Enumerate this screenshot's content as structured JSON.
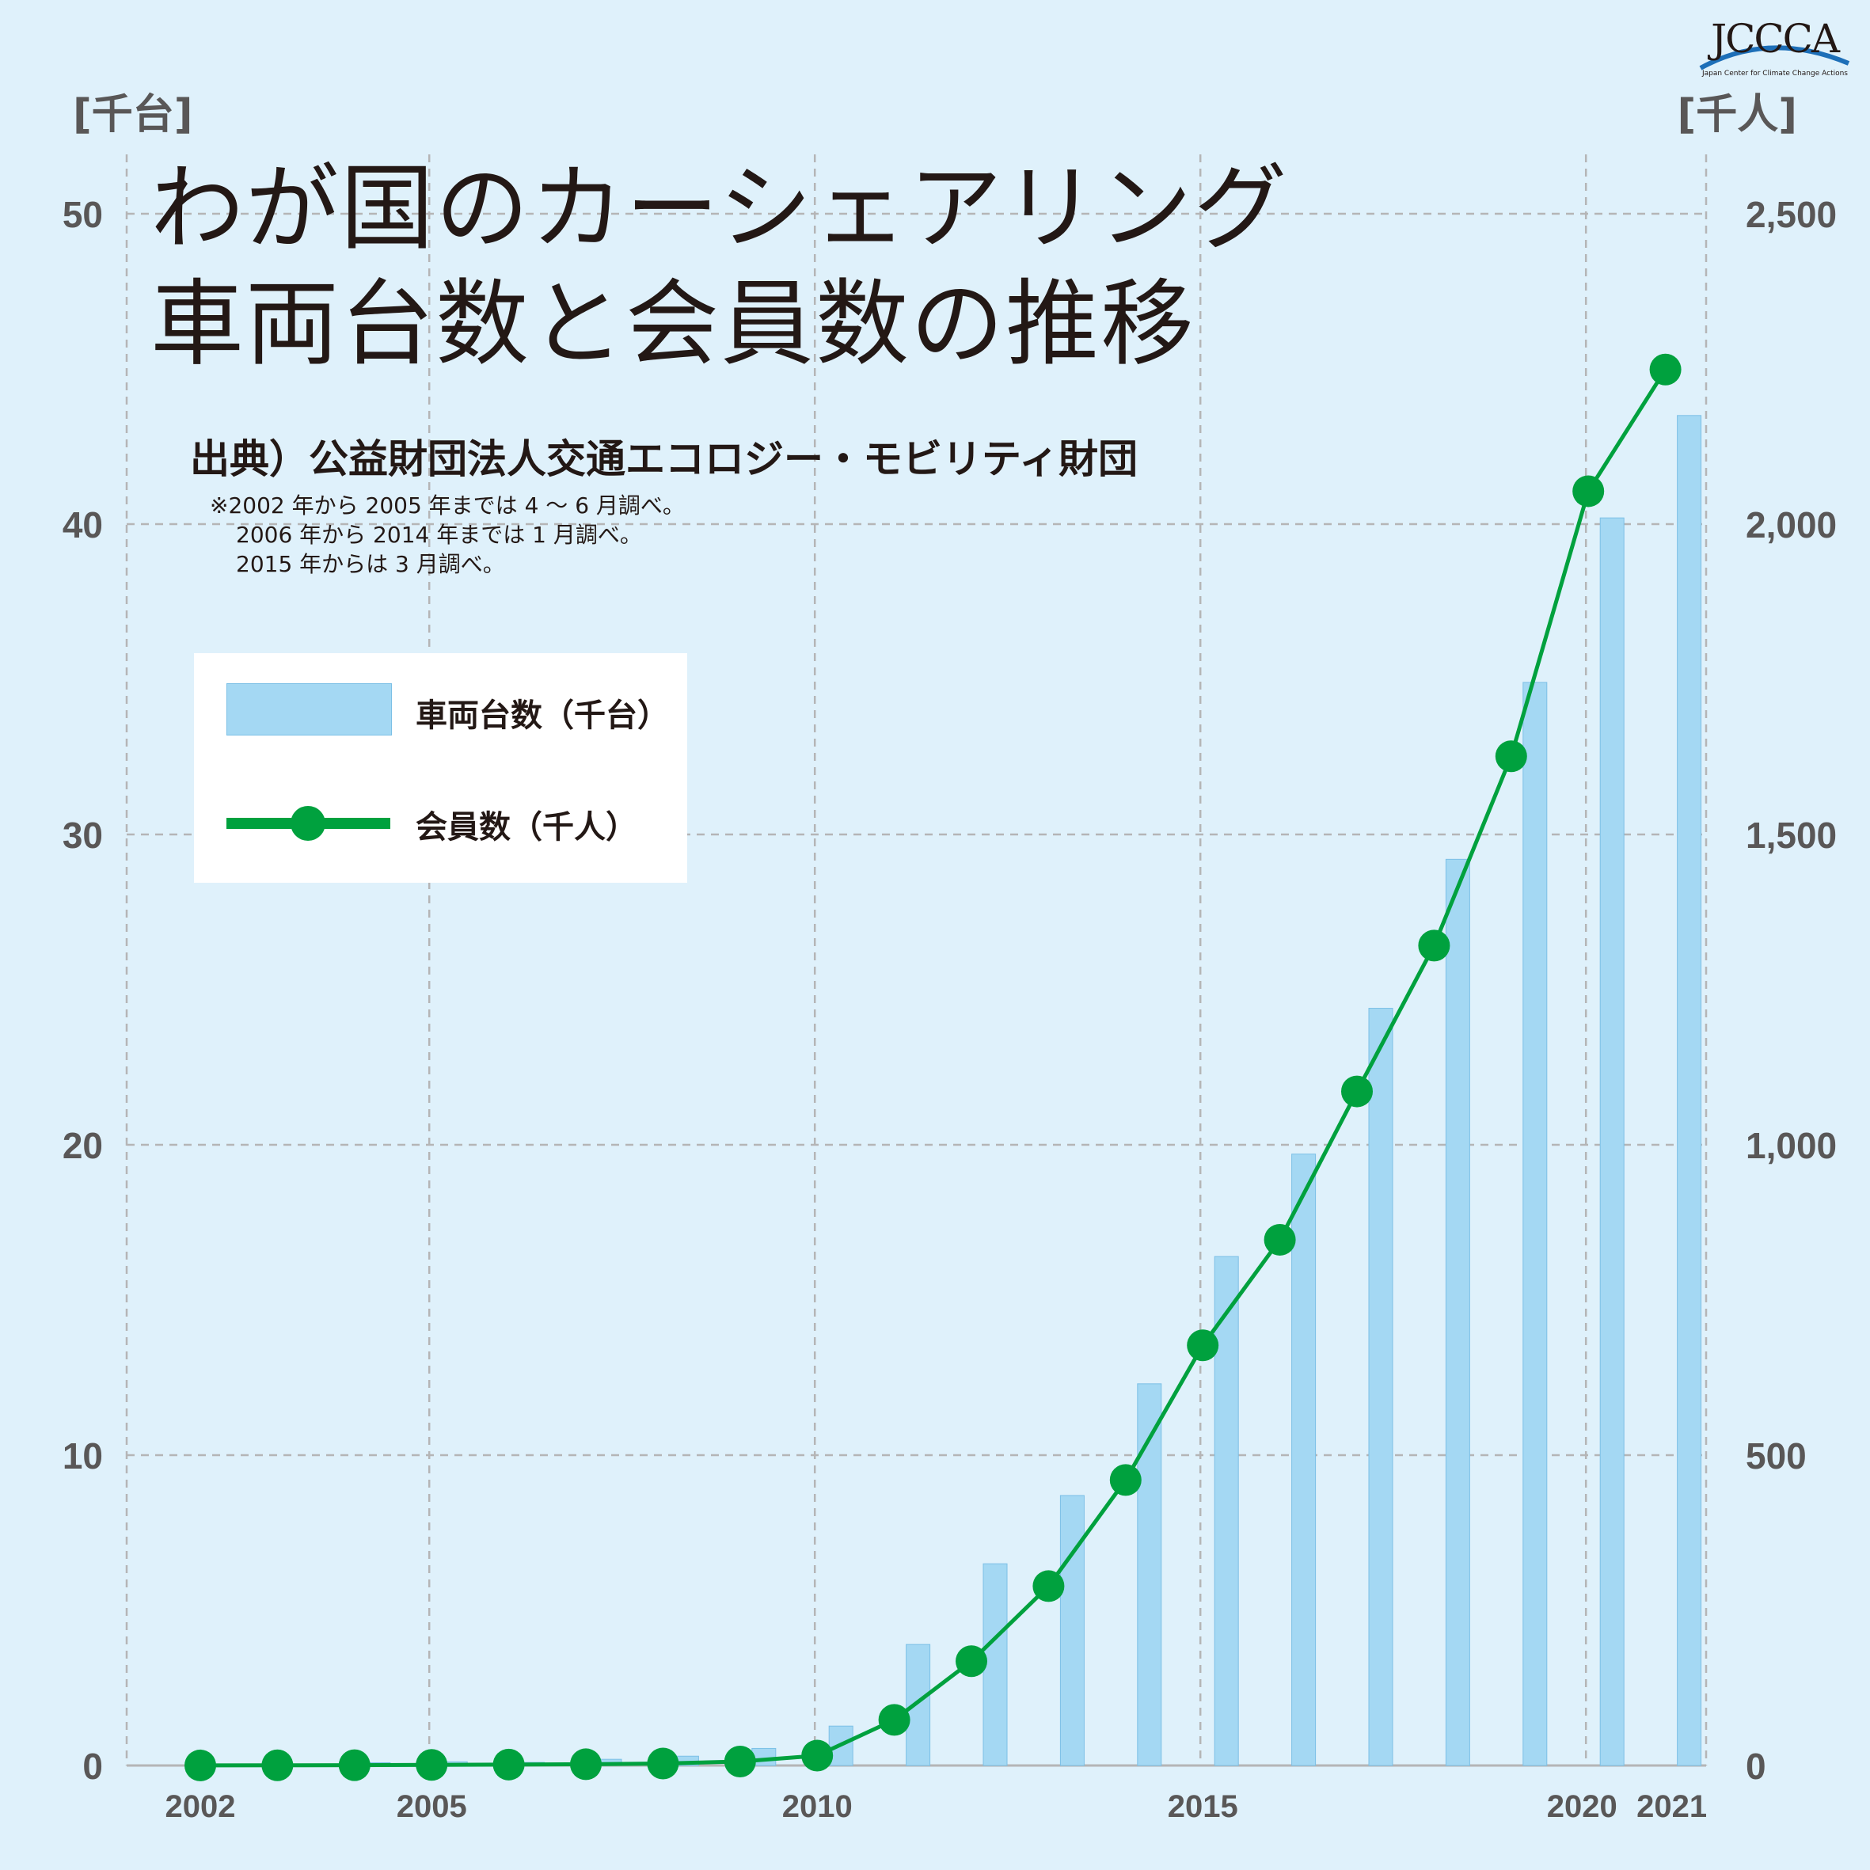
{
  "title_line1": "わが国のカーシェアリング",
  "title_line2": "車両台数と会員数の推移",
  "source": "出典）公益財団法人交通エコロジー・モビリティ財団",
  "notes": [
    "※2002 年から 2005 年までは 4 〜 6 月調べ。",
    "2006 年から 2014 年までは 1 月調べ。",
    "2015 年からは 3 月調べ。"
  ],
  "logo": {
    "text": "JCCCA",
    "subtext": "Japan Center for Climate Change Actions"
  },
  "colors": {
    "background": "#dff1fb",
    "bar": "#a4d8f3",
    "line": "#00a13e",
    "grid": "#b5b5b6",
    "axis_text": "#595757"
  },
  "chart_data": {
    "type": "bar+line",
    "categories": [
      2002,
      2003,
      2004,
      2005,
      2006,
      2007,
      2008,
      2009,
      2010,
      2011,
      2012,
      2013,
      2014,
      2015,
      2016,
      2017,
      2018,
      2019,
      2020,
      2021
    ],
    "x_tick_labels": [
      "2002",
      "2005",
      "2010",
      "2015",
      "2020",
      "2021"
    ],
    "left_axis": {
      "unit_label": "[千台]",
      "ylim": [
        0,
        50
      ],
      "ticks": [
        "0",
        "10",
        "20",
        "30",
        "40",
        "50"
      ]
    },
    "right_axis": {
      "unit_label": "[千人]",
      "ylim": [
        0,
        2500
      ],
      "ticks": [
        "0",
        "500",
        "1,000",
        "1,500",
        "2,000",
        "2,500"
      ]
    },
    "series": [
      {
        "name": "車両台数（千台）",
        "type": "bar",
        "axis": "left",
        "values": [
          0.02,
          0.05,
          0.09,
          0.12,
          0.1,
          0.2,
          0.3,
          0.55,
          1.27,
          3.9,
          6.5,
          8.7,
          12.3,
          16.4,
          19.7,
          24.4,
          29.2,
          34.9,
          40.2,
          43.5
        ]
      },
      {
        "name": "会員数（千人）",
        "type": "line",
        "axis": "left_scaled_x50",
        "values": [
          0.1,
          0.3,
          0.5,
          1.0,
          1.5,
          2.0,
          3.2,
          6.4,
          15.9,
          73.5,
          168.0,
          289.0,
          460.0,
          677.0,
          847.0,
          1086.0,
          1321.0,
          1626.0,
          2053.0,
          2249.0
        ]
      }
    ],
    "grid": true,
    "legend": "upper-left"
  }
}
